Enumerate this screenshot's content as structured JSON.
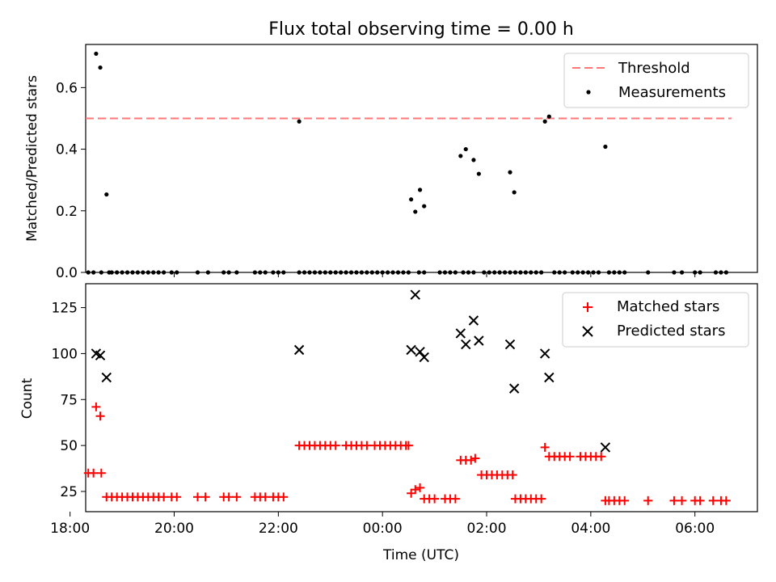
{
  "chart_data": [
    {
      "type": "scatter",
      "title": "Flux total observing time = 0.00 h",
      "xlabel": "",
      "ylabel": "Matched/Predicted stars",
      "ylim": [
        0.0,
        0.74
      ],
      "yticks": [
        "0.0",
        "0.2",
        "0.4",
        "0.6"
      ],
      "yticks_values": [
        0.0,
        0.2,
        0.4,
        0.6
      ],
      "xlim": [
        -5.7,
        7.2
      ],
      "x_unit": "hours relative to 00:00 UTC",
      "threshold": {
        "name": "Threshold",
        "y": 0.5,
        "x_range": [
          -5.7,
          6.7
        ],
        "color": "#ff7777",
        "style": "dashed"
      },
      "series": [
        {
          "name": "Measurements",
          "color": "#000000",
          "marker": "dot",
          "points": [
            [
              -5.65,
              0
            ],
            [
              -5.55,
              0
            ],
            [
              -5.4,
              0
            ],
            [
              -5.5,
              0.71
            ],
            [
              -5.42,
              0.665
            ],
            [
              -5.3,
              0.253
            ],
            [
              -5.25,
              0
            ],
            [
              -5.2,
              0
            ],
            [
              -5.1,
              0
            ],
            [
              -5.0,
              0
            ],
            [
              -4.9,
              0
            ],
            [
              -4.8,
              0
            ],
            [
              -4.7,
              0
            ],
            [
              -4.6,
              0
            ],
            [
              -4.5,
              0
            ],
            [
              -4.4,
              0
            ],
            [
              -4.3,
              0
            ],
            [
              -4.2,
              0
            ],
            [
              -4.05,
              0
            ],
            [
              -3.95,
              0
            ],
            [
              -3.55,
              0
            ],
            [
              -3.35,
              0
            ],
            [
              -3.05,
              0
            ],
            [
              -2.95,
              0
            ],
            [
              -2.8,
              0
            ],
            [
              -2.45,
              0
            ],
            [
              -2.35,
              0
            ],
            [
              -2.25,
              0
            ],
            [
              -2.1,
              0
            ],
            [
              -2.0,
              0
            ],
            [
              -1.9,
              0
            ],
            [
              -1.6,
              0
            ],
            [
              -1.5,
              0
            ],
            [
              -1.4,
              0
            ],
            [
              -1.3,
              0
            ],
            [
              -1.2,
              0
            ],
            [
              -1.1,
              0
            ],
            [
              -1.0,
              0
            ],
            [
              -0.9,
              0
            ],
            [
              -0.8,
              0
            ],
            [
              -0.7,
              0
            ],
            [
              -0.6,
              0
            ],
            [
              -0.5,
              0
            ],
            [
              -0.4,
              0
            ],
            [
              -0.3,
              0
            ],
            [
              -0.2,
              0
            ],
            [
              -0.1,
              0
            ],
            [
              0.0,
              0
            ],
            [
              0.1,
              0
            ],
            [
              0.2,
              0
            ],
            [
              0.3,
              0
            ],
            [
              0.4,
              0
            ],
            [
              0.5,
              0
            ],
            [
              -1.6,
              0.49
            ],
            [
              0.55,
              0.237
            ],
            [
              0.63,
              0.197
            ],
            [
              0.72,
              0.268
            ],
            [
              0.8,
              0.215
            ],
            [
              0.7,
              0
            ],
            [
              0.8,
              0
            ],
            [
              1.1,
              0
            ],
            [
              1.2,
              0
            ],
            [
              1.3,
              0
            ],
            [
              1.4,
              0
            ],
            [
              1.5,
              0.378
            ],
            [
              1.6,
              0.4
            ],
            [
              1.75,
              0.365
            ],
            [
              1.85,
              0.32
            ],
            [
              1.55,
              0
            ],
            [
              1.65,
              0
            ],
            [
              1.75,
              0
            ],
            [
              1.95,
              0
            ],
            [
              2.05,
              0
            ],
            [
              2.15,
              0
            ],
            [
              2.25,
              0
            ],
            [
              2.35,
              0
            ],
            [
              2.45,
              0.325
            ],
            [
              2.53,
              0.26
            ],
            [
              2.45,
              0
            ],
            [
              2.55,
              0
            ],
            [
              2.65,
              0
            ],
            [
              2.75,
              0
            ],
            [
              2.85,
              0
            ],
            [
              2.95,
              0
            ],
            [
              3.05,
              0
            ],
            [
              3.12,
              0.49
            ],
            [
              3.2,
              0.506
            ],
            [
              3.3,
              0
            ],
            [
              3.4,
              0
            ],
            [
              3.5,
              0
            ],
            [
              3.65,
              0
            ],
            [
              3.75,
              0
            ],
            [
              3.85,
              0
            ],
            [
              3.95,
              0
            ],
            [
              4.05,
              0
            ],
            [
              4.15,
              0
            ],
            [
              4.28,
              0.408
            ],
            [
              4.35,
              0
            ],
            [
              4.45,
              0
            ],
            [
              4.55,
              0
            ],
            [
              4.65,
              0
            ],
            [
              5.1,
              0
            ],
            [
              5.6,
              0
            ],
            [
              5.75,
              0
            ],
            [
              6.0,
              0
            ],
            [
              6.1,
              0
            ],
            [
              6.4,
              0
            ],
            [
              6.5,
              0
            ],
            [
              6.6,
              0
            ]
          ]
        }
      ],
      "legend": {
        "position": "top-right",
        "items": [
          "Threshold",
          "Measurements"
        ]
      }
    },
    {
      "type": "scatter",
      "title": "",
      "xlabel": "Time (UTC)",
      "ylabel": "Count",
      "ylim": [
        14,
        138
      ],
      "yticks": [
        "25",
        "50",
        "75",
        "100",
        "125"
      ],
      "yticks_values": [
        25,
        50,
        75,
        100,
        125
      ],
      "xlim": [
        -5.7,
        7.2
      ],
      "x_unit": "hours relative to 00:00 UTC",
      "xticks": [
        "18:00",
        "20:00",
        "22:00",
        "00:00",
        "02:00",
        "04:00",
        "06:00"
      ],
      "xticks_values": [
        -6,
        -4,
        -2,
        0,
        2,
        4,
        6
      ],
      "series": [
        {
          "name": "Matched stars",
          "color": "#ff0000",
          "marker": "plus",
          "points": [
            [
              -5.65,
              35
            ],
            [
              -5.55,
              35
            ],
            [
              -5.4,
              35
            ],
            [
              -5.5,
              71
            ],
            [
              -5.42,
              66
            ],
            [
              -5.3,
              22
            ],
            [
              -5.2,
              22
            ],
            [
              -5.1,
              22
            ],
            [
              -5.0,
              22
            ],
            [
              -4.9,
              22
            ],
            [
              -4.8,
              22
            ],
            [
              -4.7,
              22
            ],
            [
              -4.6,
              22
            ],
            [
              -4.5,
              22
            ],
            [
              -4.4,
              22
            ],
            [
              -4.3,
              22
            ],
            [
              -4.2,
              22
            ],
            [
              -4.05,
              22
            ],
            [
              -3.95,
              22
            ],
            [
              -3.55,
              22
            ],
            [
              -3.4,
              22
            ],
            [
              -3.05,
              22
            ],
            [
              -2.95,
              22
            ],
            [
              -2.8,
              22
            ],
            [
              -2.45,
              22
            ],
            [
              -2.35,
              22
            ],
            [
              -2.25,
              22
            ],
            [
              -2.1,
              22
            ],
            [
              -2.0,
              22
            ],
            [
              -1.9,
              22
            ],
            [
              -1.6,
              50
            ],
            [
              -1.5,
              50
            ],
            [
              -1.4,
              50
            ],
            [
              -1.3,
              50
            ],
            [
              -1.2,
              50
            ],
            [
              -1.1,
              50
            ],
            [
              -1.0,
              50
            ],
            [
              -0.9,
              50
            ],
            [
              -0.7,
              50
            ],
            [
              -0.6,
              50
            ],
            [
              -0.5,
              50
            ],
            [
              -0.4,
              50
            ],
            [
              -0.3,
              50
            ],
            [
              -0.15,
              50
            ],
            [
              -0.05,
              50
            ],
            [
              0.05,
              50
            ],
            [
              0.15,
              50
            ],
            [
              0.25,
              50
            ],
            [
              0.35,
              50
            ],
            [
              0.45,
              50
            ],
            [
              0.5,
              50
            ],
            [
              0.55,
              24
            ],
            [
              0.63,
              26
            ],
            [
              0.72,
              27
            ],
            [
              0.8,
              21
            ],
            [
              0.9,
              21
            ],
            [
              1.0,
              21
            ],
            [
              1.2,
              21
            ],
            [
              1.3,
              21
            ],
            [
              1.4,
              21
            ],
            [
              1.5,
              42
            ],
            [
              1.6,
              42
            ],
            [
              1.7,
              42
            ],
            [
              1.78,
              43
            ],
            [
              1.9,
              34
            ],
            [
              2.0,
              34
            ],
            [
              2.1,
              34
            ],
            [
              2.2,
              34
            ],
            [
              2.3,
              34
            ],
            [
              2.4,
              34
            ],
            [
              2.5,
              34
            ],
            [
              2.55,
              21
            ],
            [
              2.65,
              21
            ],
            [
              2.75,
              21
            ],
            [
              2.85,
              21
            ],
            [
              2.95,
              21
            ],
            [
              3.05,
              21
            ],
            [
              3.12,
              49
            ],
            [
              3.2,
              44
            ],
            [
              3.3,
              44
            ],
            [
              3.4,
              44
            ],
            [
              3.5,
              44
            ],
            [
              3.6,
              44
            ],
            [
              3.8,
              44
            ],
            [
              3.9,
              44
            ],
            [
              4.0,
              44
            ],
            [
              4.1,
              44
            ],
            [
              4.2,
              44
            ],
            [
              4.28,
              20
            ],
            [
              4.35,
              20
            ],
            [
              4.45,
              20
            ],
            [
              4.55,
              20
            ],
            [
              4.65,
              20
            ],
            [
              5.1,
              20
            ],
            [
              5.6,
              20
            ],
            [
              5.75,
              20
            ],
            [
              6.0,
              20
            ],
            [
              6.1,
              20
            ],
            [
              6.35,
              20
            ],
            [
              6.5,
              20
            ],
            [
              6.6,
              20
            ]
          ]
        },
        {
          "name": "Predicted stars",
          "color": "#000000",
          "marker": "x",
          "points": [
            [
              -5.5,
              100
            ],
            [
              -5.42,
              99
            ],
            [
              -5.3,
              87
            ],
            [
              -1.6,
              102
            ],
            [
              0.55,
              102
            ],
            [
              0.63,
              132
            ],
            [
              0.72,
              101
            ],
            [
              0.8,
              98
            ],
            [
              1.5,
              111
            ],
            [
              1.6,
              105
            ],
            [
              1.75,
              118
            ],
            [
              1.85,
              107
            ],
            [
              2.45,
              105
            ],
            [
              2.53,
              81
            ],
            [
              3.12,
              100
            ],
            [
              3.2,
              87
            ],
            [
              4.28,
              49
            ]
          ]
        }
      ],
      "legend": {
        "position": "top-right",
        "items": [
          "Matched stars",
          "Predicted stars"
        ]
      }
    }
  ]
}
